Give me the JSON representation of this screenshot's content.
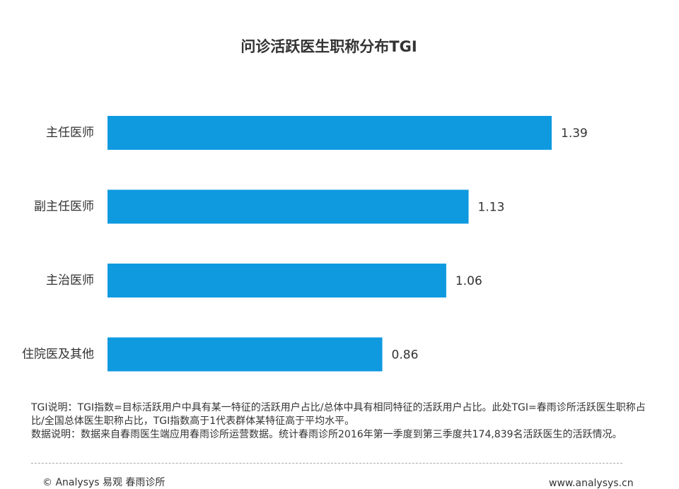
{
  "chart_data": {
    "type": "bar",
    "orientation": "horizontal",
    "title": "问诊活跃医生职称分布TGI",
    "categories": [
      "主任医师",
      "副主任医师",
      "主治医师",
      "住院医及其他"
    ],
    "values": [
      1.39,
      1.13,
      1.06,
      0.86
    ],
    "color": "#0f9ae0"
  },
  "notes": [
    "TGI说明：TGI指数=目标活跃用户中具有某一特征的活跃用户占比/总体中具有相同特征的活跃用户占比。此处TGI=春雨诊所活跃医生职称占比/全国总体医生职称占比，TGI指数高于1代表群体某特征高于平均水平。",
    "数据说明：数据来自春雨医生端应用春雨诊所运营数据。统计春雨诊所2016年第一季度到第三季度共174,839名活跃医生的活跃情况。"
  ],
  "footer": {
    "source": "© Analysys 易观 春雨诊所",
    "url": "www.analysys.cn"
  }
}
